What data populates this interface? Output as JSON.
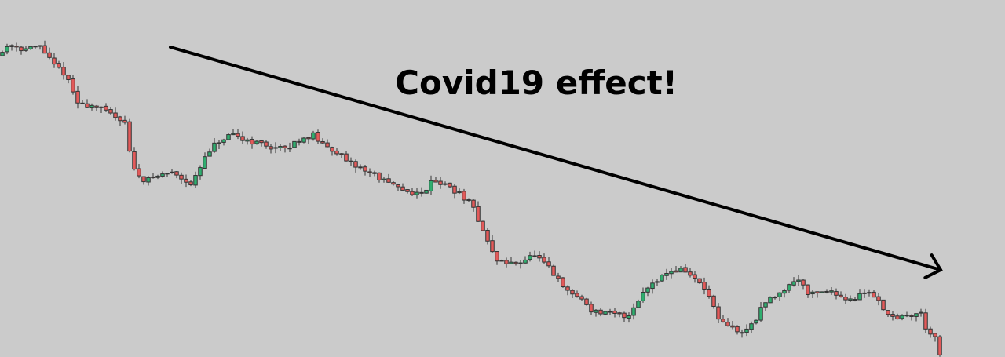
{
  "chart_data": {
    "type": "candlestick",
    "title": "",
    "xlabel": "",
    "ylabel": "",
    "grid": false,
    "legend": "none",
    "ylim": [
      0,
      455
    ],
    "x": [
      0,
      1200
    ],
    "colors": {
      "up": "#2fae6f",
      "down": "#e35a5a",
      "background": "#cbcbcb",
      "arrow": "#000000"
    },
    "annotation": {
      "text": "Covid19 effect!",
      "trend": "down",
      "arrow_from": [
        217,
        395
      ],
      "arrow_to": [
        1198,
        111
      ]
    },
    "path_points": [
      [
        0,
        385
      ],
      [
        12,
        400
      ],
      [
        30,
        392
      ],
      [
        52,
        396
      ],
      [
        68,
        372
      ],
      [
        82,
        362
      ],
      [
        100,
        322
      ],
      [
        120,
        320
      ],
      [
        145,
        308
      ],
      [
        160,
        300
      ],
      [
        168,
        240
      ],
      [
        185,
        225
      ],
      [
        205,
        232
      ],
      [
        220,
        236
      ],
      [
        245,
        220
      ],
      [
        260,
        252
      ],
      [
        275,
        272
      ],
      [
        295,
        282
      ],
      [
        320,
        275
      ],
      [
        345,
        268
      ],
      [
        365,
        264
      ],
      [
        380,
        277
      ],
      [
        400,
        283
      ],
      [
        410,
        270
      ],
      [
        430,
        262
      ],
      [
        440,
        248
      ],
      [
        460,
        241
      ],
      [
        475,
        233
      ],
      [
        490,
        224
      ],
      [
        505,
        215
      ],
      [
        525,
        210
      ],
      [
        540,
        207
      ],
      [
        548,
        228
      ],
      [
        560,
        222
      ],
      [
        575,
        215
      ],
      [
        595,
        200
      ],
      [
        605,
        185
      ],
      [
        620,
        150
      ],
      [
        630,
        125
      ],
      [
        650,
        118
      ],
      [
        670,
        125
      ],
      [
        680,
        130
      ],
      [
        700,
        112
      ],
      [
        720,
        85
      ],
      [
        740,
        75
      ],
      [
        755,
        58
      ],
      [
        775,
        55
      ],
      [
        800,
        52
      ],
      [
        815,
        77
      ],
      [
        830,
        95
      ],
      [
        850,
        108
      ],
      [
        870,
        112
      ],
      [
        890,
        95
      ],
      [
        905,
        75
      ],
      [
        915,
        45
      ],
      [
        930,
        38
      ],
      [
        945,
        30
      ],
      [
        960,
        45
      ],
      [
        975,
        70
      ],
      [
        990,
        80
      ],
      [
        1010,
        96
      ],
      [
        1020,
        100
      ],
      [
        1030,
        80
      ],
      [
        1050,
        85
      ],
      [
        1070,
        78
      ],
      [
        1090,
        72
      ],
      [
        1100,
        85
      ],
      [
        1115,
        78
      ],
      [
        1130,
        55
      ],
      [
        1145,
        50
      ],
      [
        1160,
        53
      ],
      [
        1172,
        58
      ],
      [
        1180,
        35
      ],
      [
        1190,
        28
      ],
      [
        1196,
        0
      ]
    ],
    "candle_count": 200,
    "seed": 11
  }
}
